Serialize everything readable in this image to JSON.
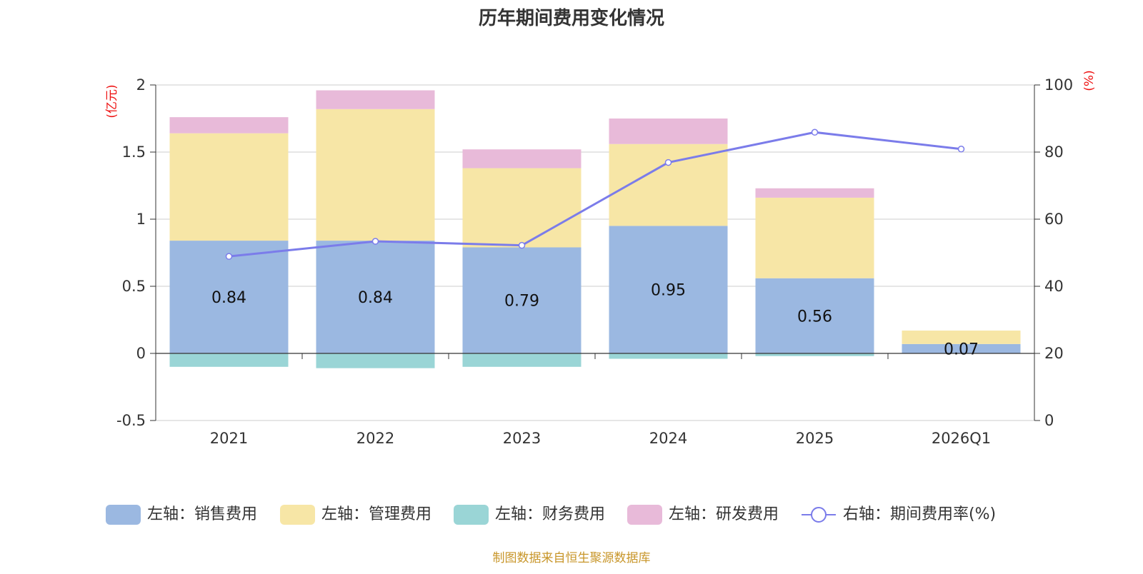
{
  "chart_data": {
    "type": "bar",
    "title": "历年期间费用变化情况",
    "categories": [
      "2021",
      "2022",
      "2023",
      "2024",
      "2025",
      "2026Q1"
    ],
    "left_axis": {
      "unit": "(亿元)",
      "min": -0.5,
      "max": 2,
      "ticks": [
        -0.5,
        0,
        0.5,
        1,
        1.5,
        2
      ],
      "tick_labels": [
        "-0.5",
        "0",
        "0.5",
        "1",
        "1.5",
        "2"
      ]
    },
    "right_axis": {
      "unit": "(%)",
      "min": 0,
      "max": 100,
      "ticks": [
        0,
        20,
        40,
        60,
        80,
        100
      ],
      "tick_labels": [
        "0",
        "20",
        "40",
        "60",
        "80",
        "100"
      ]
    },
    "series": [
      {
        "name": "左轴：销售费用",
        "type": "bar",
        "axis": "left",
        "stack": true,
        "color": "#9bb8e1",
        "values": [
          0.84,
          0.84,
          0.79,
          0.95,
          0.56,
          0.07
        ],
        "labels": [
          "0.84",
          "0.84",
          "0.79",
          "0.95",
          "0.56",
          "0.07"
        ]
      },
      {
        "name": "左轴：管理费用",
        "type": "bar",
        "axis": "left",
        "stack": true,
        "color": "#f7e6a6",
        "values": [
          0.8,
          0.98,
          0.59,
          0.61,
          0.6,
          0.1
        ]
      },
      {
        "name": "左轴：财务费用",
        "type": "bar",
        "axis": "left",
        "stack": true,
        "color": "#9ad5d6",
        "values": [
          -0.1,
          -0.11,
          -0.1,
          -0.04,
          -0.02,
          0.0
        ]
      },
      {
        "name": "左轴：研发费用",
        "type": "bar",
        "axis": "left",
        "stack": true,
        "color": "#e8bad9",
        "values": [
          0.12,
          0.14,
          0.14,
          0.19,
          0.07,
          0.0
        ]
      },
      {
        "name": "右轴：期间费用率(%)",
        "type": "line",
        "axis": "right",
        "color": "#7b7cea",
        "values": [
          48.9,
          53.4,
          52.2,
          76.9,
          85.9,
          80.9
        ]
      }
    ],
    "grid": true,
    "legend_position": "bottom"
  },
  "source": "制图数据来自恒生聚源数据库"
}
